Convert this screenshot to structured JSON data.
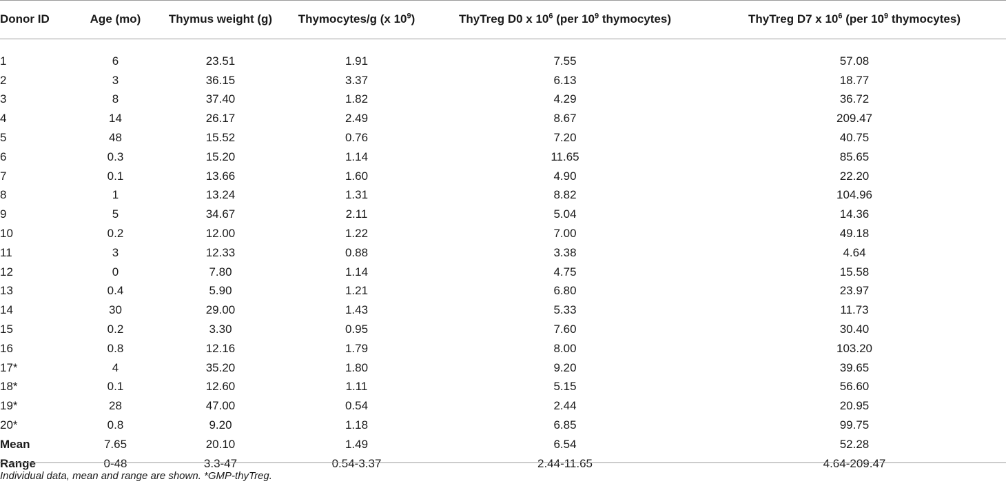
{
  "table": {
    "headers": [
      {
        "text": "Donor ID"
      },
      {
        "text": "Age (mo)"
      },
      {
        "text": "Thymus weight (g)"
      },
      {
        "text": "Thymocytes/g (x 10",
        "sup1": "9",
        "tail": ")"
      },
      {
        "text": "ThyTreg D0 x 10",
        "sup1": "6",
        "mid": " (per 10",
        "sup2": "9",
        "tail": " thymocytes)"
      },
      {
        "text": "ThyTreg D7 x 10",
        "sup1": "6",
        "mid": " (per 10",
        "sup2": "9",
        "tail": " thymocytes)"
      }
    ],
    "rows": [
      [
        "1",
        "6",
        "23.51",
        "1.91",
        "7.55",
        "57.08"
      ],
      [
        "2",
        "3",
        "36.15",
        "3.37",
        "6.13",
        "18.77"
      ],
      [
        "3",
        "8",
        "37.40",
        "1.82",
        "4.29",
        "36.72"
      ],
      [
        "4",
        "14",
        "26.17",
        "2.49",
        "8.67",
        "209.47"
      ],
      [
        "5",
        "48",
        "15.52",
        "0.76",
        "7.20",
        "40.75"
      ],
      [
        "6",
        "0.3",
        "15.20",
        "1.14",
        "11.65",
        "85.65"
      ],
      [
        "7",
        "0.1",
        "13.66",
        "1.60",
        "4.90",
        "22.20"
      ],
      [
        "8",
        "1",
        "13.24",
        "1.31",
        "8.82",
        "104.96"
      ],
      [
        "9",
        "5",
        "34.67",
        "2.11",
        "5.04",
        "14.36"
      ],
      [
        "10",
        "0.2",
        "12.00",
        "1.22",
        "7.00",
        "49.18"
      ],
      [
        "11",
        "3",
        "12.33",
        "0.88",
        "3.38",
        "4.64"
      ],
      [
        "12",
        "0",
        "7.80",
        "1.14",
        "4.75",
        "15.58"
      ],
      [
        "13",
        "0.4",
        "5.90",
        "1.21",
        "6.80",
        "23.97"
      ],
      [
        "14",
        "30",
        "29.00",
        "1.43",
        "5.33",
        "11.73"
      ],
      [
        "15",
        "0.2",
        "3.30",
        "0.95",
        "7.60",
        "30.40"
      ],
      [
        "16",
        "0.8",
        "12.16",
        "1.79",
        "8.00",
        "103.20"
      ],
      [
        "17*",
        "4",
        "35.20",
        "1.80",
        "9.20",
        "39.65"
      ],
      [
        "18*",
        "0.1",
        "12.60",
        "1.11",
        "5.15",
        "56.60"
      ],
      [
        "19*",
        "28",
        "47.00",
        "0.54",
        "2.44",
        "20.95"
      ],
      [
        "20*",
        "0.8",
        "9.20",
        "1.18",
        "6.85",
        "99.75"
      ]
    ],
    "summary": [
      [
        "Mean",
        "7.65",
        "20.10",
        "1.49",
        "6.54",
        "52.28"
      ],
      [
        "Range",
        "0-48",
        "3.3-47",
        "0.54-3.37",
        "2.44-11.65",
        "4.64-209.47"
      ]
    ]
  },
  "footnote": "Individual data, mean and range are shown. *GMP-thyTreg."
}
